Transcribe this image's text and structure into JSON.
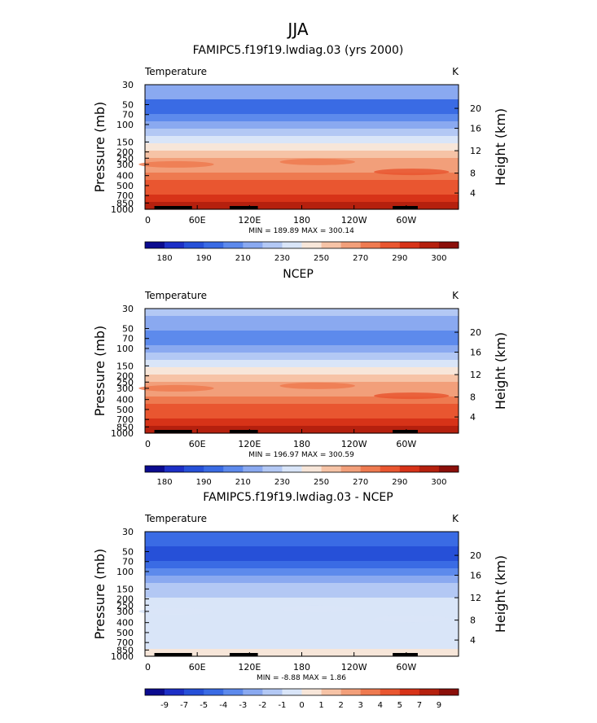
{
  "figure_title": "JJA",
  "chart_data": [
    {
      "type": "heatmap",
      "title": "FAMIPC5.f19f19.lwdiag.03 (yrs 2000)",
      "variable": "Temperature",
      "units": "K",
      "ylabel": "Pressure (mb)",
      "y2label": "Height (km)",
      "x_ticks": [
        "0",
        "60E",
        "120E",
        "180",
        "120W",
        "60W"
      ],
      "y_ticks": [
        "30",
        "50",
        "70",
        "100",
        "150",
        "200",
        "250",
        "300",
        "400",
        "500",
        "700",
        "850",
        "1000"
      ],
      "y2_ticks": [
        "20",
        "16",
        "12",
        "8",
        "4"
      ],
      "stats": "MIN = 189.89   MAX = 300.14",
      "band_temps": [
        215,
        210,
        195,
        196,
        205,
        210,
        220,
        230,
        245,
        253,
        260,
        265,
        272,
        280,
        285,
        290,
        298
      ],
      "colorbar_labels": [
        "180",
        "190",
        "210",
        "230",
        "250",
        "270",
        "290",
        "300"
      ]
    },
    {
      "type": "heatmap",
      "title": "NCEP",
      "variable": "Temperature",
      "units": "K",
      "ylabel": "Pressure (mb)",
      "y2label": "Height (km)",
      "x_ticks": [
        "0",
        "60E",
        "120E",
        "180",
        "120W",
        "60W"
      ],
      "y_ticks": [
        "30",
        "50",
        "70",
        "100",
        "150",
        "200",
        "250",
        "300",
        "400",
        "500",
        "700",
        "850",
        "1000"
      ],
      "y2_ticks": [
        "20",
        "16",
        "12",
        "8",
        "4"
      ],
      "stats": "MIN = 196.97   MAX = 300.59",
      "band_temps": [
        220,
        215,
        210,
        202,
        205,
        210,
        220,
        232,
        245,
        253,
        260,
        266,
        273,
        280,
        286,
        292,
        298
      ],
      "colorbar_labels": [
        "180",
        "190",
        "210",
        "230",
        "250",
        "270",
        "290",
        "300"
      ]
    },
    {
      "type": "heatmap",
      "title": "FAMIPC5.f19f19.lwdiag.03 - NCEP",
      "variable": "Temperature",
      "units": "K",
      "ylabel": "Pressure (mb)",
      "y2label": "Height (km)",
      "x_ticks": [
        "0",
        "60E",
        "120E",
        "180",
        "120W",
        "60W"
      ],
      "y_ticks": [
        "30",
        "50",
        "70",
        "100",
        "150",
        "200",
        "250",
        "300",
        "400",
        "500",
        "700",
        "850",
        "1000"
      ],
      "y2_ticks": [
        "20",
        "16",
        "12",
        "8",
        "4"
      ],
      "stats": "MIN =  -8.88   MAX =    1.86",
      "band_diffs": [
        -4.5,
        -5,
        -5.5,
        -6,
        -5,
        -4,
        -3,
        -2,
        -1.5,
        -1,
        -1,
        -0.5,
        -0.5,
        -0.5,
        -0.5,
        -0.5,
        0
      ],
      "colorbar_labels": [
        "-9",
        "-7",
        "-5",
        "-4",
        "-3",
        "-2",
        "-1",
        "0",
        "1",
        "2",
        "3",
        "4",
        "5",
        "7",
        "9"
      ]
    }
  ],
  "abs_palette": [
    "#0b0b8f",
    "#1c2fc6",
    "#2650d8",
    "#3a6be4",
    "#5d8aec",
    "#8aa9f0",
    "#b3c8f4",
    "#d9e5f8",
    "#f7e6d9",
    "#f6c3a6",
    "#f29f7a",
    "#ee7a50",
    "#e95630",
    "#d73318",
    "#b5200e",
    "#8b0f0a"
  ],
  "abs_levels": [
    180,
    185,
    190,
    200,
    210,
    220,
    230,
    240,
    250,
    260,
    270,
    280,
    290,
    295,
    300
  ],
  "diff_palette": [
    "#0b0b8f",
    "#1c2fc6",
    "#2650d8",
    "#3a6be4",
    "#5d8aec",
    "#8aa9f0",
    "#b3c8f4",
    "#d9e5f8",
    "#f7e6d9",
    "#f6c3a6",
    "#f29f7a",
    "#ee7a50",
    "#e95630",
    "#d73318",
    "#b5200e",
    "#8b0f0a"
  ],
  "diff_levels": [
    -9,
    -7,
    -5,
    -4,
    -3,
    -2,
    -1,
    0,
    1,
    2,
    3,
    4,
    5,
    7,
    9
  ]
}
